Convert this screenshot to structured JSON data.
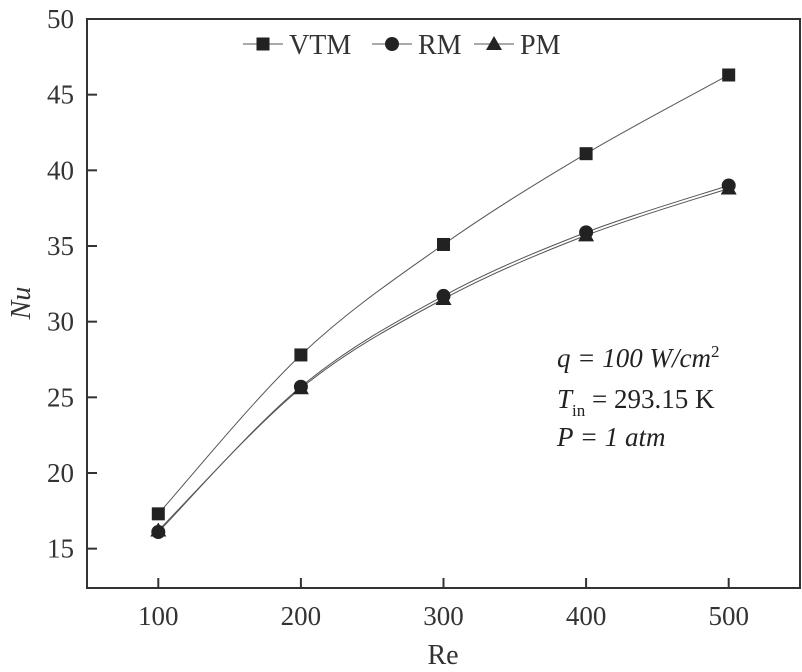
{
  "chart_data": {
    "type": "line",
    "xlabel": "Re",
    "ylabel": "Nu",
    "xlim": [
      50,
      550
    ],
    "ylim": [
      12.4,
      50
    ],
    "x": [
      100,
      200,
      300,
      400,
      500
    ],
    "xticks": [
      100,
      200,
      300,
      400,
      500
    ],
    "yticks": [
      15,
      20,
      25,
      30,
      35,
      40,
      45,
      50
    ],
    "grid": false,
    "legend_position": "top",
    "series": [
      {
        "name": "VTM",
        "marker": "square",
        "values": [
          17.3,
          27.8,
          35.1,
          41.1,
          46.3
        ]
      },
      {
        "name": "RM",
        "marker": "circle",
        "values": [
          16.1,
          25.7,
          31.7,
          35.9,
          39.0
        ]
      },
      {
        "name": "PM",
        "marker": "triangle",
        "values": [
          16.2,
          25.6,
          31.5,
          35.7,
          38.8
        ]
      }
    ],
    "annotations": {
      "q": "q = 100 W/cm",
      "q_sup": "2",
      "t_main": "T",
      "t_sub": "in",
      "t_rest": " = 293.15 K",
      "p": "P = 1 atm"
    },
    "colors": {
      "marker": "#222222",
      "line": "#555555",
      "axis": "#333333"
    }
  }
}
